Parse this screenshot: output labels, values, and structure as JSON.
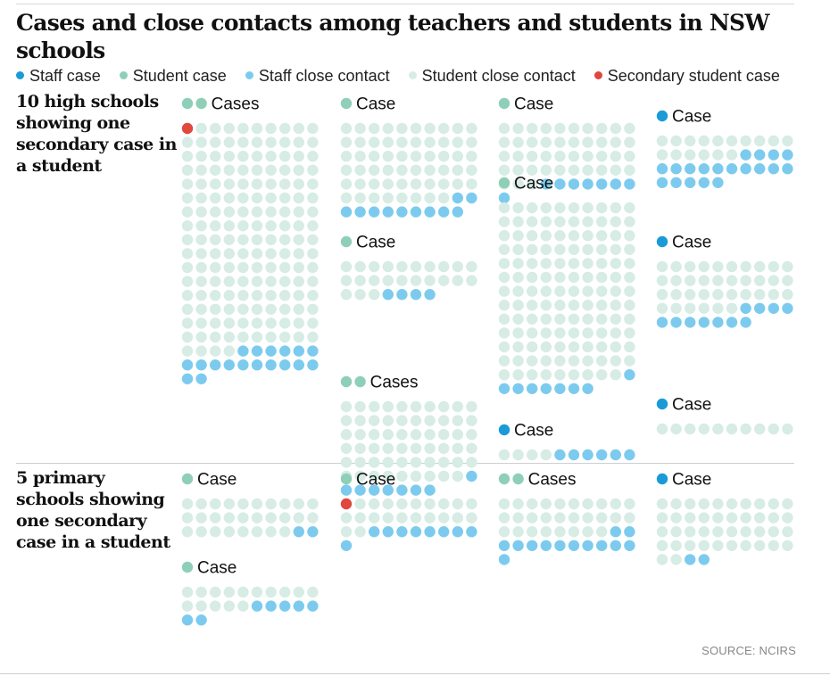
{
  "title": "Cases and close contacts among teachers and students in NSW schools",
  "legend": [
    {
      "label": "Staff case",
      "color": "#1a9bd7"
    },
    {
      "label": "Student case",
      "color": "#8fcfb8"
    },
    {
      "label": "Staff close contact",
      "color": "#7ccbef"
    },
    {
      "label": "Student close contact",
      "color": "#d6ece4"
    },
    {
      "label": "Secondary student case",
      "color": "#e0473d"
    }
  ],
  "sections": [
    {
      "label": "10 high schools showing one secondary case in a student"
    },
    {
      "label": "5 primary schools showing one secondary case in a student"
    }
  ],
  "source": "SOURCE: NCIRS",
  "chart_data": {
    "type": "waffle",
    "colors": {
      "staff_case": "#1a9bd7",
      "student_case": "#8fcfb8",
      "staff_close_contact": "#7ccbef",
      "student_close_contact": "#d6ece4",
      "secondary_student_case": "#e0473d"
    },
    "schools": [
      {
        "section": "high",
        "heading": "Cases",
        "staff_cases": 0,
        "student_cases": 2,
        "secondary_student_cases": 1,
        "student_close_contacts": 163,
        "staff_close_contacts": 18
      },
      {
        "section": "high",
        "heading": "Case",
        "staff_cases": 0,
        "student_cases": 1,
        "secondary_student_cases": 0,
        "student_close_contacts": 58,
        "staff_close_contacts": 11
      },
      {
        "section": "high",
        "heading": "Case",
        "staff_cases": 0,
        "student_cases": 1,
        "secondary_student_cases": 0,
        "student_close_contacts": 43,
        "staff_close_contacts": 8
      },
      {
        "section": "high",
        "heading": "Case",
        "staff_cases": 1,
        "student_cases": 0,
        "secondary_student_cases": 0,
        "student_close_contacts": 16,
        "staff_close_contacts": 19
      },
      {
        "section": "high",
        "heading": "Case",
        "staff_cases": 0,
        "student_cases": 1,
        "secondary_student_cases": 0,
        "student_close_contacts": 129,
        "staff_close_contacts": 8
      },
      {
        "section": "high",
        "heading": "Case",
        "staff_cases": 1,
        "student_cases": 0,
        "secondary_student_cases": 0,
        "student_close_contacts": 36,
        "staff_close_contacts": 11
      },
      {
        "section": "high",
        "heading": "Case",
        "staff_cases": 0,
        "student_cases": 1,
        "secondary_student_cases": 0,
        "student_close_contacts": 23,
        "staff_close_contacts": 4
      },
      {
        "section": "high",
        "heading": "Cases",
        "staff_cases": 0,
        "student_cases": 2,
        "secondary_student_cases": 0,
        "student_close_contacts": 59,
        "staff_close_contacts": 8
      },
      {
        "section": "high",
        "heading": "Case",
        "staff_cases": 1,
        "student_cases": 0,
        "secondary_student_cases": 0,
        "student_close_contacts": 10,
        "staff_close_contacts": 0
      },
      {
        "section": "high",
        "heading": "Case",
        "staff_cases": 1,
        "student_cases": 0,
        "secondary_student_cases": 0,
        "student_close_contacts": 4,
        "staff_close_contacts": 6
      },
      {
        "section": "primary",
        "heading": "Case",
        "staff_cases": 0,
        "student_cases": 1,
        "secondary_student_cases": 0,
        "student_close_contacts": 28,
        "staff_close_contacts": 2
      },
      {
        "section": "primary",
        "heading": "Case",
        "staff_cases": 0,
        "student_cases": 1,
        "secondary_student_cases": 1,
        "student_close_contacts": 21,
        "staff_close_contacts": 9
      },
      {
        "section": "primary",
        "heading": "Cases",
        "staff_cases": 0,
        "student_cases": 2,
        "secondary_student_cases": 0,
        "student_close_contacts": 28,
        "staff_close_contacts": 13
      },
      {
        "section": "primary",
        "heading": "Case",
        "staff_cases": 1,
        "student_cases": 0,
        "secondary_student_cases": 0,
        "student_close_contacts": 42,
        "staff_close_contacts": 2
      },
      {
        "section": "primary",
        "heading": "Case",
        "staff_cases": 0,
        "student_cases": 1,
        "secondary_student_cases": 0,
        "student_close_contacts": 15,
        "staff_close_contacts": 7
      }
    ]
  }
}
